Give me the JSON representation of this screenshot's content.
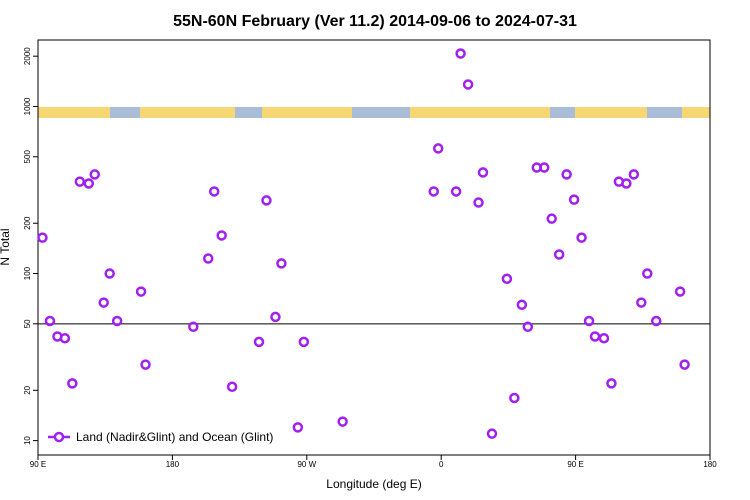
{
  "chart_data": {
    "type": "scatter",
    "title": "55N-60N February (Ver 11.2)   2014-09-06 to 2024-07-31",
    "x_label": "Longitude (deg E)",
    "y_label": "N Total",
    "xlim": [
      90,
      540
    ],
    "ylim": [
      8.2,
      2500
    ],
    "log_y": true,
    "xticks": [
      {
        "value": 90,
        "label": "90 E"
      },
      180,
      {
        "value": 270,
        "label": "90 W"
      },
      {
        "value": 360,
        "label": "0"
      },
      {
        "value": 450,
        "label": "90 E"
      },
      180
    ],
    "yticks": [
      10,
      20,
      50,
      100,
      200,
      500,
      1000,
      2000
    ],
    "reference_line": 50,
    "legend": "bottom-left",
    "series": [
      {
        "name": "Land (Nadir&Glint) and Ocean (Glint)",
        "color": "#a020f0",
        "x": [
          93,
          98,
          103,
          108,
          113,
          118,
          124,
          128,
          134,
          138,
          143,
          159,
          162,
          194,
          204,
          208,
          213,
          220,
          238,
          243,
          249,
          253,
          264,
          268,
          294,
          355,
          358,
          370,
          373,
          378,
          385,
          388,
          394,
          404,
          409,
          414,
          418,
          424,
          429,
          434,
          439,
          444,
          449,
          454,
          459,
          463,
          469,
          474,
          479,
          484,
          489,
          494,
          498,
          504,
          520,
          523
        ],
        "values": [
          164,
          52,
          42,
          41,
          22,
          355,
          346,
          392,
          67,
          100,
          52,
          78,
          28.5,
          48,
          123,
          310,
          169,
          21,
          39,
          274,
          55,
          115,
          12,
          39,
          13,
          310,
          561,
          310,
          2075,
          1355,
          266,
          403,
          11,
          93,
          18,
          65,
          48,
          431,
          431,
          213,
          130,
          392,
          277,
          164,
          52,
          42,
          41,
          22,
          355,
          346,
          392,
          67,
          100,
          52,
          78,
          28.5
        ]
      }
    ]
  }
}
